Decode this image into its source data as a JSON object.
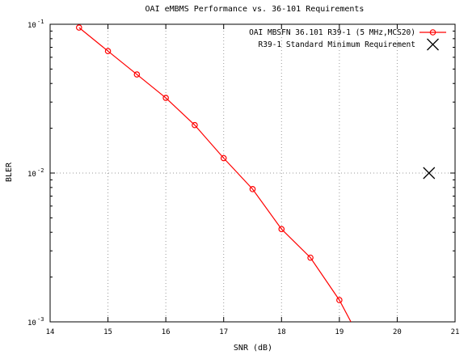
{
  "chart_data": {
    "type": "line",
    "title": "OAI eMBMS Performance vs. 36-101 Requirements",
    "xlabel": "SNR (dB)",
    "ylabel": "BLER",
    "xlim": [
      14,
      21
    ],
    "ylim": [
      0.001,
      0.1
    ],
    "yscale": "log",
    "xticks": [
      "14",
      "15",
      "16",
      "17",
      "18",
      "19",
      "20",
      "21"
    ],
    "yticks": [
      {
        "value": 0.1,
        "base": "10",
        "exp": "-1"
      },
      {
        "value": 0.01,
        "base": "10",
        "exp": "-2"
      },
      {
        "value": 0.001,
        "base": "10",
        "exp": "-3"
      }
    ],
    "grid": true,
    "legend_position": "top-right",
    "series": [
      {
        "name": "OAI MBSFN 36.101 R39-1 (5 MHz,MCS20)",
        "color": "#ff0000",
        "marker": "circle",
        "x": [
          14.5,
          15.0,
          15.5,
          16.0,
          16.5,
          17.0,
          17.5,
          18.0,
          18.5,
          19.0,
          19.2
        ],
        "y": [
          0.095,
          0.066,
          0.046,
          0.032,
          0.021,
          0.0126,
          0.0078,
          0.0042,
          0.0027,
          0.0014,
          0.001
        ]
      },
      {
        "name": "R39-1 Standard Minimum Requirement",
        "color": "#000000",
        "marker": "cross",
        "x": [
          20.55
        ],
        "y": [
          0.01
        ]
      }
    ]
  }
}
